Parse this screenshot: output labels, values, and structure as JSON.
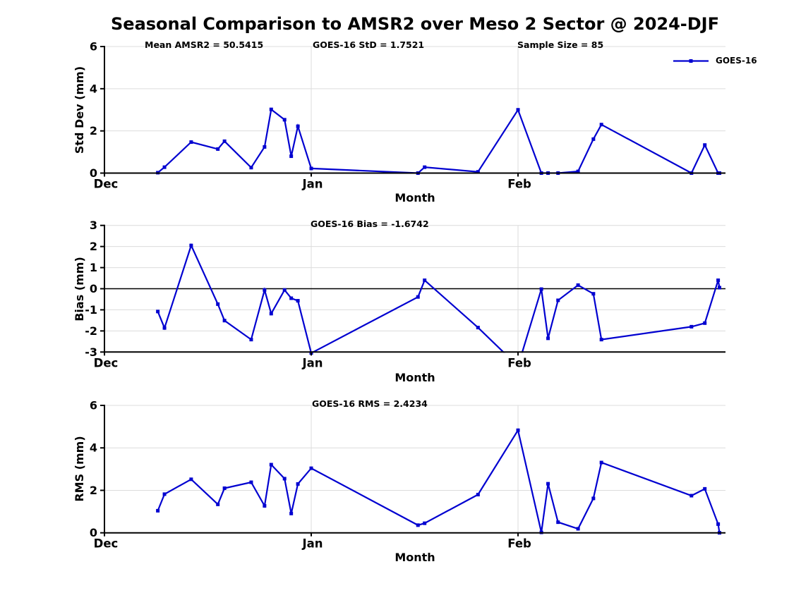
{
  "title": "Seasonal Comparison to AMSR2 over Meso 2 Sector @ 2024-DJF",
  "legend": {
    "label": "GOES-16"
  },
  "colors": {
    "line": "#0000d0",
    "grid": "#dcdcdc",
    "axis": "#000000",
    "zero_line": "#000000"
  },
  "x_axis": {
    "label": "Month",
    "range": [
      0,
      93.1
    ],
    "ticks": [
      {
        "v": 0,
        "label": "Dec"
      },
      {
        "v": 31,
        "label": "Jan"
      },
      {
        "v": 62,
        "label": "Feb"
      }
    ]
  },
  "chart_data": [
    {
      "type": "line",
      "name": "std_dev",
      "series_name": "GOES-16",
      "ylabel": "Std Dev (mm)",
      "ylim": [
        0,
        6
      ],
      "yticks": [
        0,
        2,
        4,
        6
      ],
      "grid": true,
      "legend_position": "top-right",
      "annotations": [
        {
          "text": "Mean AMSR2 = 50.5415"
        },
        {
          "text": "GOES-16 StD = 1.7521"
        },
        {
          "text": "Sample Size = 85"
        }
      ],
      "x": [
        8,
        9,
        13,
        17,
        18,
        22,
        24,
        25,
        27,
        28,
        29,
        31,
        47,
        48,
        56,
        62,
        65.5,
        66.5,
        68,
        71,
        73.3,
        74.5,
        88,
        90,
        92,
        92.2
      ],
      "y": [
        0.02,
        0.28,
        1.47,
        1.14,
        1.51,
        0.26,
        1.24,
        3.02,
        2.53,
        0.8,
        2.22,
        0.22,
        0.0,
        0.28,
        0.06,
        3.0,
        0.0,
        0.0,
        0.0,
        0.08,
        1.61,
        2.3,
        0.0,
        1.33,
        0.0,
        0.0
      ]
    },
    {
      "type": "line",
      "name": "bias",
      "series_name": "GOES-16",
      "ylabel": "Bias (mm)",
      "ylim": [
        -3,
        3
      ],
      "yticks": [
        -3,
        -2,
        -1,
        0,
        1,
        2,
        3
      ],
      "grid": true,
      "zero_line": true,
      "annotations": [
        {
          "text": "GOES-16 Bias = -1.6742"
        }
      ],
      "x": [
        8,
        9,
        13,
        17,
        18,
        22,
        24,
        25,
        27,
        28,
        29,
        31,
        47,
        48,
        56,
        62,
        65.5,
        66.5,
        68,
        71,
        73.3,
        74.5,
        88,
        90,
        92,
        92.2
      ],
      "y": [
        -1.08,
        -1.86,
        2.05,
        -0.73,
        -1.51,
        -2.41,
        -0.06,
        -1.18,
        -0.06,
        -0.45,
        -0.57,
        -3.05,
        -0.39,
        0.4,
        -1.84,
        -3.67,
        -0.02,
        -2.35,
        -0.55,
        0.17,
        -0.24,
        -2.41,
        -1.8,
        -1.63,
        0.4,
        0.05
      ]
    },
    {
      "type": "line",
      "name": "rms",
      "series_name": "GOES-16",
      "ylabel": "RMS (mm)",
      "ylim": [
        0,
        6
      ],
      "yticks": [
        0,
        2,
        4,
        6
      ],
      "grid": true,
      "annotations": [
        {
          "text": "GOES-16 RMS = 2.4234"
        }
      ],
      "x": [
        8,
        9,
        13,
        17,
        18,
        22,
        24,
        25,
        27,
        28,
        29,
        31,
        47,
        48,
        56,
        62,
        65.5,
        66.5,
        68,
        71,
        73.3,
        74.5,
        88,
        90,
        92,
        92.2
      ],
      "y": [
        1.04,
        1.82,
        2.52,
        1.34,
        2.1,
        2.38,
        1.27,
        3.21,
        2.55,
        0.91,
        2.3,
        3.04,
        0.36,
        0.45,
        1.8,
        4.83,
        0.02,
        2.31,
        0.5,
        0.19,
        1.62,
        3.31,
        1.75,
        2.07,
        0.41,
        0.0
      ]
    }
  ]
}
